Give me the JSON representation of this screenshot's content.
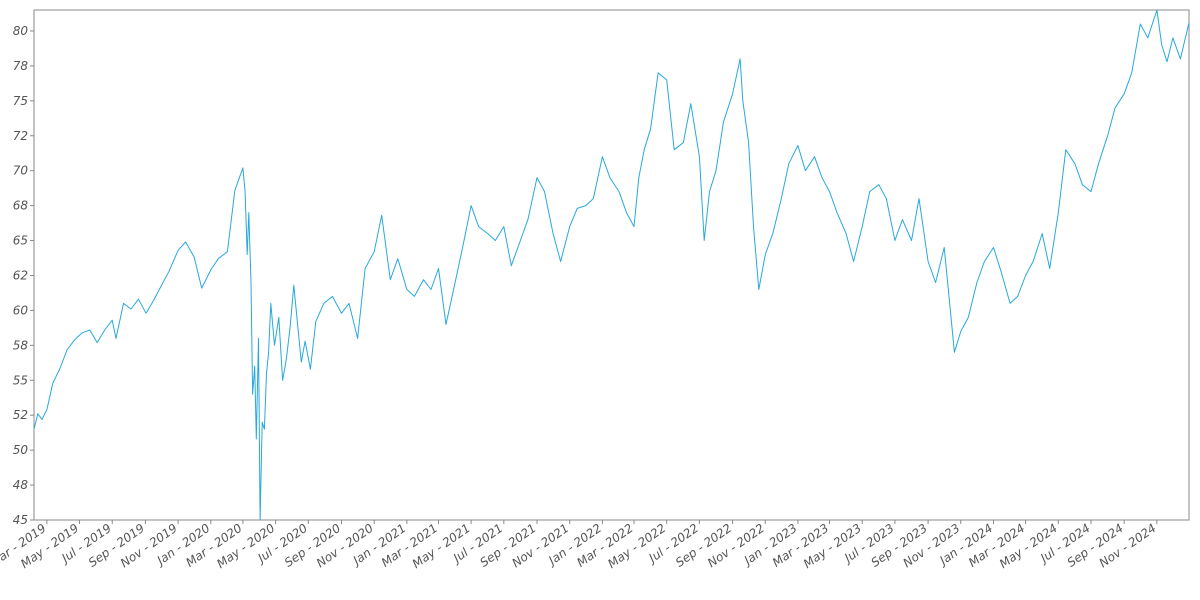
{
  "chart_data": {
    "type": "line",
    "title": "",
    "xlabel": "",
    "ylabel": "",
    "x_range": [
      "2019-02-05",
      "2024-12-31"
    ],
    "ylim": [
      45,
      81.5
    ],
    "grid": false,
    "legend": "none",
    "x_tick_labels": [
      {
        "date": "2019-03-01",
        "label": "Mar - 2019"
      },
      {
        "date": "2019-05-01",
        "label": "May - 2019"
      },
      {
        "date": "2019-07-01",
        "label": "Jul - 2019"
      },
      {
        "date": "2019-09-01",
        "label": "Sep - 2019"
      },
      {
        "date": "2019-11-01",
        "label": "Nov - 2019"
      },
      {
        "date": "2020-01-01",
        "label": "Jan - 2020"
      },
      {
        "date": "2020-03-01",
        "label": "Mar - 2020"
      },
      {
        "date": "2020-05-01",
        "label": "May - 2020"
      },
      {
        "date": "2020-07-01",
        "label": "Jul - 2020"
      },
      {
        "date": "2020-09-01",
        "label": "Sep - 2020"
      },
      {
        "date": "2020-11-01",
        "label": "Nov - 2020"
      },
      {
        "date": "2021-01-01",
        "label": "Jan - 2021"
      },
      {
        "date": "2021-03-01",
        "label": "Mar - 2021"
      },
      {
        "date": "2021-05-01",
        "label": "May - 2021"
      },
      {
        "date": "2021-07-01",
        "label": "Jul - 2021"
      },
      {
        "date": "2021-09-01",
        "label": "Sep - 2021"
      },
      {
        "date": "2021-11-01",
        "label": "Nov - 2021"
      },
      {
        "date": "2022-01-01",
        "label": "Jan - 2022"
      },
      {
        "date": "2022-03-01",
        "label": "Mar - 2022"
      },
      {
        "date": "2022-05-01",
        "label": "May - 2022"
      },
      {
        "date": "2022-07-01",
        "label": "Jul - 2022"
      },
      {
        "date": "2022-09-01",
        "label": "Sep - 2022"
      },
      {
        "date": "2022-11-01",
        "label": "Nov - 2022"
      },
      {
        "date": "2023-01-01",
        "label": "Jan - 2023"
      },
      {
        "date": "2023-03-01",
        "label": "Mar - 2023"
      },
      {
        "date": "2023-05-01",
        "label": "May - 2023"
      },
      {
        "date": "2023-07-01",
        "label": "Jul - 2023"
      },
      {
        "date": "2023-09-01",
        "label": "Sep - 2023"
      },
      {
        "date": "2023-11-01",
        "label": "Nov - 2023"
      },
      {
        "date": "2024-01-01",
        "label": "Jan - 2024"
      },
      {
        "date": "2024-03-01",
        "label": "Mar - 2024"
      },
      {
        "date": "2024-05-01",
        "label": "May - 2024"
      },
      {
        "date": "2024-07-01",
        "label": "Jul - 2024"
      },
      {
        "date": "2024-09-01",
        "label": "Sep - 2024"
      },
      {
        "date": "2024-11-01",
        "label": "Nov - 2024"
      }
    ],
    "y_ticks": [
      {
        "value": 45,
        "label": "45"
      },
      {
        "value": 47.5,
        "label": "48"
      },
      {
        "value": 50,
        "label": "50"
      },
      {
        "value": 52.5,
        "label": "52"
      },
      {
        "value": 55,
        "label": "55"
      },
      {
        "value": 57.5,
        "label": "58"
      },
      {
        "value": 60,
        "label": "60"
      },
      {
        "value": 62.5,
        "label": "62"
      },
      {
        "value": 65,
        "label": "65"
      },
      {
        "value": 67.5,
        "label": "68"
      },
      {
        "value": 70,
        "label": "70"
      },
      {
        "value": 72.5,
        "label": "72"
      },
      {
        "value": 75,
        "label": "75"
      },
      {
        "value": 77.5,
        "label": "78"
      },
      {
        "value": 80,
        "label": "80"
      }
    ],
    "series": [
      {
        "color": "#29a8dc",
        "points": [
          [
            "2019-02-05",
            51.5
          ],
          [
            "2019-02-12",
            52.6
          ],
          [
            "2019-02-20",
            52.2
          ],
          [
            "2019-03-01",
            52.9
          ],
          [
            "2019-03-12",
            54.8
          ],
          [
            "2019-03-25",
            55.8
          ],
          [
            "2019-04-08",
            57.2
          ],
          [
            "2019-04-22",
            57.9
          ],
          [
            "2019-05-06",
            58.4
          ],
          [
            "2019-05-20",
            58.6
          ],
          [
            "2019-06-03",
            57.7
          ],
          [
            "2019-06-17",
            58.6
          ],
          [
            "2019-07-01",
            59.3
          ],
          [
            "2019-07-08",
            58.0
          ],
          [
            "2019-07-22",
            60.5
          ],
          [
            "2019-08-05",
            60.1
          ],
          [
            "2019-08-19",
            60.8
          ],
          [
            "2019-09-02",
            59.8
          ],
          [
            "2019-09-16",
            60.7
          ],
          [
            "2019-10-01",
            61.8
          ],
          [
            "2019-10-15",
            62.8
          ],
          [
            "2019-11-01",
            64.3
          ],
          [
            "2019-11-15",
            64.9
          ],
          [
            "2019-12-01",
            63.8
          ],
          [
            "2019-12-15",
            61.6
          ],
          [
            "2020-01-01",
            62.9
          ],
          [
            "2020-01-15",
            63.7
          ],
          [
            "2020-02-01",
            64.2
          ],
          [
            "2020-02-15",
            68.6
          ],
          [
            "2020-03-01",
            70.2
          ],
          [
            "2020-03-05",
            68.5
          ],
          [
            "2020-03-09",
            64.0
          ],
          [
            "2020-03-12",
            67.0
          ],
          [
            "2020-03-16",
            62.0
          ],
          [
            "2020-03-19",
            54.0
          ],
          [
            "2020-03-23",
            56.0
          ],
          [
            "2020-03-26",
            50.8
          ],
          [
            "2020-03-30",
            58.0
          ],
          [
            "2020-04-02",
            45.0
          ],
          [
            "2020-04-06",
            52.0
          ],
          [
            "2020-04-10",
            51.5
          ],
          [
            "2020-04-14",
            55.5
          ],
          [
            "2020-04-18",
            57.0
          ],
          [
            "2020-04-22",
            60.5
          ],
          [
            "2020-04-29",
            57.5
          ],
          [
            "2020-05-07",
            59.5
          ],
          [
            "2020-05-14",
            55.0
          ],
          [
            "2020-05-21",
            56.5
          ],
          [
            "2020-05-28",
            58.8
          ],
          [
            "2020-06-04",
            61.8
          ],
          [
            "2020-06-11",
            59.0
          ],
          [
            "2020-06-18",
            56.3
          ],
          [
            "2020-06-25",
            57.8
          ],
          [
            "2020-07-05",
            55.8
          ],
          [
            "2020-07-15",
            59.2
          ],
          [
            "2020-07-30",
            60.5
          ],
          [
            "2020-08-15",
            61.0
          ],
          [
            "2020-09-01",
            59.8
          ],
          [
            "2020-09-15",
            60.5
          ],
          [
            "2020-10-01",
            58.0
          ],
          [
            "2020-10-15",
            63.0
          ],
          [
            "2020-11-01",
            64.2
          ],
          [
            "2020-11-15",
            66.8
          ],
          [
            "2020-12-01",
            62.2
          ],
          [
            "2020-12-15",
            63.7
          ],
          [
            "2021-01-01",
            61.5
          ],
          [
            "2021-01-15",
            61.0
          ],
          [
            "2021-02-01",
            62.2
          ],
          [
            "2021-02-15",
            61.5
          ],
          [
            "2021-03-01",
            63.0
          ],
          [
            "2021-03-15",
            59.0
          ],
          [
            "2021-04-01",
            62.0
          ],
          [
            "2021-04-15",
            64.5
          ],
          [
            "2021-05-01",
            67.5
          ],
          [
            "2021-05-15",
            66.0
          ],
          [
            "2021-06-01",
            65.5
          ],
          [
            "2021-06-15",
            65.0
          ],
          [
            "2021-07-01",
            66.0
          ],
          [
            "2021-07-15",
            63.2
          ],
          [
            "2021-08-01",
            65.0
          ],
          [
            "2021-08-15",
            66.5
          ],
          [
            "2021-09-01",
            69.5
          ],
          [
            "2021-09-15",
            68.5
          ],
          [
            "2021-10-01",
            65.5
          ],
          [
            "2021-10-15",
            63.5
          ],
          [
            "2021-11-01",
            66.0
          ],
          [
            "2021-11-15",
            67.3
          ],
          [
            "2021-12-01",
            67.5
          ],
          [
            "2021-12-15",
            68.0
          ],
          [
            "2022-01-01",
            71.0
          ],
          [
            "2022-01-15",
            69.5
          ],
          [
            "2022-02-01",
            68.5
          ],
          [
            "2022-02-15",
            67.0
          ],
          [
            "2022-03-01",
            66.0
          ],
          [
            "2022-03-10",
            69.5
          ],
          [
            "2022-03-20",
            71.5
          ],
          [
            "2022-04-01",
            73.0
          ],
          [
            "2022-04-15",
            77.0
          ],
          [
            "2022-05-01",
            76.5
          ],
          [
            "2022-05-15",
            71.5
          ],
          [
            "2022-06-01",
            72.0
          ],
          [
            "2022-06-15",
            74.8
          ],
          [
            "2022-07-01",
            71.0
          ],
          [
            "2022-07-10",
            65.0
          ],
          [
            "2022-07-20",
            68.5
          ],
          [
            "2022-08-01",
            70.0
          ],
          [
            "2022-08-15",
            73.5
          ],
          [
            "2022-09-01",
            75.5
          ],
          [
            "2022-09-15",
            78.0
          ],
          [
            "2022-09-20",
            75.0
          ],
          [
            "2022-10-01",
            72.0
          ],
          [
            "2022-10-10",
            66.0
          ],
          [
            "2022-10-20",
            61.5
          ],
          [
            "2022-11-01",
            64.0
          ],
          [
            "2022-11-15",
            65.5
          ],
          [
            "2022-12-01",
            68.0
          ],
          [
            "2022-12-15",
            70.5
          ],
          [
            "2023-01-01",
            71.8
          ],
          [
            "2023-01-15",
            70.0
          ],
          [
            "2023-02-01",
            71.0
          ],
          [
            "2023-02-15",
            69.5
          ],
          [
            "2023-03-01",
            68.5
          ],
          [
            "2023-03-15",
            67.0
          ],
          [
            "2023-04-01",
            65.5
          ],
          [
            "2023-04-15",
            63.5
          ],
          [
            "2023-05-01",
            66.0
          ],
          [
            "2023-05-15",
            68.5
          ],
          [
            "2023-06-01",
            69.0
          ],
          [
            "2023-06-15",
            68.0
          ],
          [
            "2023-07-01",
            65.0
          ],
          [
            "2023-07-15",
            66.5
          ],
          [
            "2023-08-01",
            65.0
          ],
          [
            "2023-08-15",
            68.0
          ],
          [
            "2023-09-01",
            63.5
          ],
          [
            "2023-09-15",
            62.0
          ],
          [
            "2023-10-01",
            64.5
          ],
          [
            "2023-10-10",
            61.0
          ],
          [
            "2023-10-20",
            57.0
          ],
          [
            "2023-11-01",
            58.5
          ],
          [
            "2023-11-15",
            59.5
          ],
          [
            "2023-12-01",
            62.0
          ],
          [
            "2023-12-15",
            63.5
          ],
          [
            "2024-01-01",
            64.5
          ],
          [
            "2024-01-15",
            62.8
          ],
          [
            "2024-02-01",
            60.5
          ],
          [
            "2024-02-15",
            61.0
          ],
          [
            "2024-03-01",
            62.5
          ],
          [
            "2024-03-15",
            63.5
          ],
          [
            "2024-04-01",
            65.5
          ],
          [
            "2024-04-15",
            63.0
          ],
          [
            "2024-05-01",
            67.0
          ],
          [
            "2024-05-15",
            71.5
          ],
          [
            "2024-06-01",
            70.5
          ],
          [
            "2024-06-15",
            69.0
          ],
          [
            "2024-07-01",
            68.5
          ],
          [
            "2024-07-15",
            70.5
          ],
          [
            "2024-08-01",
            72.5
          ],
          [
            "2024-08-15",
            74.5
          ],
          [
            "2024-09-01",
            75.5
          ],
          [
            "2024-09-15",
            77.0
          ],
          [
            "2024-10-01",
            80.5
          ],
          [
            "2024-10-15",
            79.5
          ],
          [
            "2024-11-01",
            81.5
          ],
          [
            "2024-11-10",
            79.0
          ],
          [
            "2024-11-20",
            77.8
          ],
          [
            "2024-12-01",
            79.5
          ],
          [
            "2024-12-15",
            78.0
          ],
          [
            "2024-12-31",
            80.6
          ]
        ]
      }
    ]
  }
}
